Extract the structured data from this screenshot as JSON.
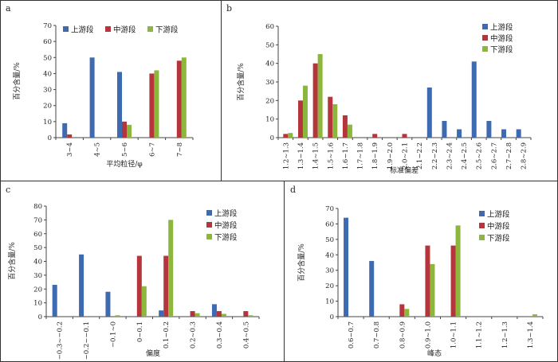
{
  "colors": {
    "upper": "#3d6ab0",
    "middle": "#b5353c",
    "lower": "#8db63c"
  },
  "chart_data": [
    {
      "panel": "a",
      "type": "bar",
      "categories": [
        "3~4",
        "4~5",
        "5~6",
        "6~7",
        "7~8"
      ],
      "series": [
        {
          "name": "上游段",
          "values": [
            9,
            50,
            41,
            0,
            0
          ]
        },
        {
          "name": "中游段",
          "values": [
            2,
            0,
            10,
            40,
            48
          ]
        },
        {
          "name": "下游段",
          "values": [
            0,
            0,
            8,
            42,
            50
          ]
        }
      ],
      "xlabel": "平均粒径/φ",
      "ylabel": "百分含量/%",
      "ylim": [
        0,
        70
      ],
      "yticks": [
        0,
        10,
        20,
        30,
        40,
        50,
        60,
        70
      ],
      "legend": "top"
    },
    {
      "panel": "b",
      "type": "bar",
      "categories": [
        "1.2~1.3",
        "1.3~1.4",
        "1.4~1.5",
        "1.5~1.6",
        "1.6~1.7",
        "1.7~1.8",
        "1.8~1.9",
        "1.9~2.0",
        "2.0~2.1",
        "2.1~2.2",
        "2.2~2.3",
        "2.3~2.4",
        "2.4~2.5",
        "2.5~2.6",
        "2.6~2.7",
        "2.7~2.8",
        "2.8~2.9"
      ],
      "series": [
        {
          "name": "上游段",
          "values": [
            0,
            0,
            0,
            0,
            0,
            0,
            0,
            0,
            0,
            0,
            27,
            9,
            4.5,
            41,
            9,
            4.5,
            4.5
          ]
        },
        {
          "name": "中游段",
          "values": [
            2,
            20,
            40,
            22,
            12,
            0,
            2,
            0,
            2,
            0,
            0,
            0,
            0,
            0,
            0,
            0,
            0
          ]
        },
        {
          "name": "下游段",
          "values": [
            2.5,
            28,
            45,
            18,
            7,
            0,
            0,
            0,
            0,
            0,
            0,
            0,
            0,
            0,
            0,
            0,
            0
          ]
        }
      ],
      "xlabel": "标准偏差",
      "ylabel": "百分含量/%",
      "ylim": [
        0,
        60
      ],
      "yticks": [
        0,
        10,
        20,
        30,
        40,
        50,
        60
      ],
      "legend": "top-right"
    },
    {
      "panel": "c",
      "type": "bar",
      "categories": [
        "−0.3~−0.2",
        "−0.2~−0.1",
        "−0.1~0",
        "0~0.1",
        "0.1~0.2",
        "0.2~0.3",
        "0.3~0.4",
        "0.4~0.5"
      ],
      "series": [
        {
          "name": "上游段",
          "values": [
            23,
            45,
            18,
            0,
            4.5,
            0,
            9,
            0
          ]
        },
        {
          "name": "中游段",
          "values": [
            0,
            0,
            0,
            44,
            44,
            4,
            4,
            4
          ]
        },
        {
          "name": "下游段",
          "values": [
            0,
            0,
            1,
            22,
            70,
            2.5,
            2,
            1
          ]
        }
      ],
      "xlabel": "偏度",
      "ylabel": "百分含量/%",
      "ylim": [
        0,
        80
      ],
      "yticks": [
        0,
        10,
        20,
        30,
        40,
        50,
        60,
        70,
        80
      ],
      "legend": "top-right"
    },
    {
      "panel": "d",
      "type": "bar",
      "categories": [
        "0.6~0.7",
        "0.7~0.8",
        "0.8~0.9",
        "0.9~1.0",
        "1.0~1.1",
        "1.1~1.2",
        "1.2~1.3",
        "1.3~1.4"
      ],
      "series": [
        {
          "name": "上游段",
          "values": [
            64,
            36,
            0,
            0,
            0,
            0,
            0,
            0
          ]
        },
        {
          "name": "中游段",
          "values": [
            0,
            0,
            8,
            46,
            46,
            0,
            0,
            0
          ]
        },
        {
          "name": "下游段",
          "values": [
            0,
            0,
            5,
            34,
            59,
            0,
            0,
            1.5
          ]
        }
      ],
      "xlabel": "峰态",
      "ylabel": "百分含量/%",
      "ylim": [
        0,
        70
      ],
      "yticks": [
        0,
        10,
        20,
        30,
        40,
        50,
        60,
        70
      ],
      "legend": "top-right"
    }
  ]
}
